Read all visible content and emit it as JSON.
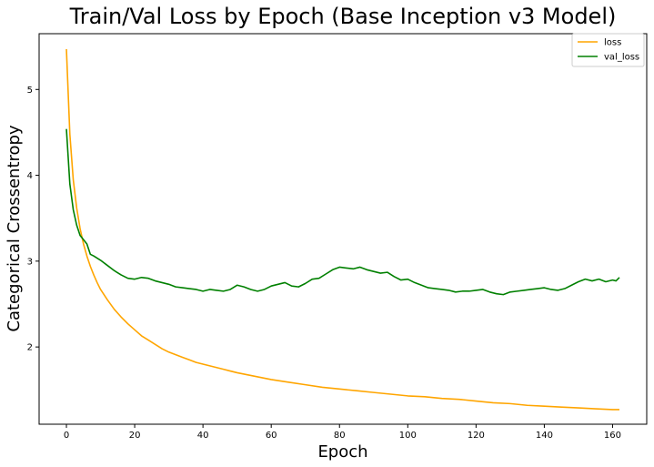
{
  "chart_data": {
    "type": "line",
    "title": "Train/Val Loss by Epoch (Base Inception v3 Model)",
    "xlabel": "Epoch",
    "ylabel": "Categorical Crossentropy",
    "xlim": [
      -8,
      170
    ],
    "ylim": [
      1.1,
      5.65
    ],
    "xticks": [
      0,
      20,
      40,
      60,
      80,
      100,
      120,
      140,
      160
    ],
    "yticks": [
      2,
      3,
      4,
      5
    ],
    "grid": false,
    "legend_position": "top-right",
    "series": [
      {
        "name": "loss",
        "color": "#ffa500",
        "x": [
          0,
          1,
          2,
          3,
          4,
          5,
          6,
          7,
          8,
          9,
          10,
          12,
          14,
          16,
          18,
          20,
          22,
          24,
          26,
          28,
          30,
          32,
          34,
          36,
          38,
          40,
          42,
          44,
          46,
          48,
          50,
          55,
          60,
          65,
          70,
          75,
          80,
          85,
          90,
          95,
          100,
          105,
          110,
          115,
          120,
          125,
          130,
          135,
          140,
          145,
          150,
          155,
          160,
          162
        ],
        "y": [
          5.47,
          4.48,
          3.95,
          3.62,
          3.38,
          3.2,
          3.06,
          2.94,
          2.84,
          2.75,
          2.67,
          2.55,
          2.44,
          2.35,
          2.27,
          2.2,
          2.13,
          2.08,
          2.03,
          1.98,
          1.94,
          1.91,
          1.88,
          1.85,
          1.82,
          1.8,
          1.78,
          1.76,
          1.74,
          1.72,
          1.7,
          1.66,
          1.62,
          1.59,
          1.56,
          1.53,
          1.51,
          1.49,
          1.47,
          1.45,
          1.43,
          1.42,
          1.4,
          1.39,
          1.37,
          1.35,
          1.34,
          1.32,
          1.31,
          1.3,
          1.29,
          1.28,
          1.27,
          1.27
        ]
      },
      {
        "name": "val_loss",
        "color": "#008000",
        "x": [
          0,
          1,
          2,
          3,
          4,
          5,
          6,
          7,
          8,
          10,
          12,
          14,
          16,
          18,
          20,
          22,
          24,
          26,
          28,
          30,
          32,
          34,
          36,
          38,
          40,
          42,
          44,
          46,
          48,
          50,
          52,
          54,
          56,
          58,
          60,
          62,
          64,
          66,
          68,
          70,
          72,
          74,
          76,
          78,
          80,
          82,
          84,
          86,
          88,
          90,
          92,
          94,
          96,
          98,
          100,
          102,
          104,
          106,
          108,
          110,
          112,
          114,
          116,
          118,
          120,
          122,
          124,
          126,
          128,
          130,
          132,
          134,
          136,
          138,
          140,
          142,
          144,
          146,
          148,
          150,
          152,
          154,
          156,
          158,
          160,
          161,
          162
        ],
        "y": [
          4.54,
          3.9,
          3.6,
          3.42,
          3.3,
          3.25,
          3.2,
          3.08,
          3.06,
          3.01,
          2.95,
          2.89,
          2.84,
          2.8,
          2.79,
          2.81,
          2.8,
          2.77,
          2.75,
          2.73,
          2.7,
          2.69,
          2.68,
          2.67,
          2.65,
          2.67,
          2.66,
          2.65,
          2.67,
          2.72,
          2.7,
          2.67,
          2.65,
          2.67,
          2.71,
          2.73,
          2.75,
          2.71,
          2.7,
          2.74,
          2.79,
          2.8,
          2.85,
          2.9,
          2.93,
          2.92,
          2.91,
          2.93,
          2.9,
          2.88,
          2.86,
          2.87,
          2.82,
          2.78,
          2.79,
          2.75,
          2.72,
          2.69,
          2.68,
          2.67,
          2.66,
          2.64,
          2.65,
          2.65,
          2.66,
          2.67,
          2.64,
          2.62,
          2.61,
          2.64,
          2.65,
          2.66,
          2.67,
          2.68,
          2.69,
          2.67,
          2.66,
          2.68,
          2.72,
          2.76,
          2.79,
          2.77,
          2.79,
          2.76,
          2.78,
          2.77,
          2.81
        ]
      }
    ]
  }
}
